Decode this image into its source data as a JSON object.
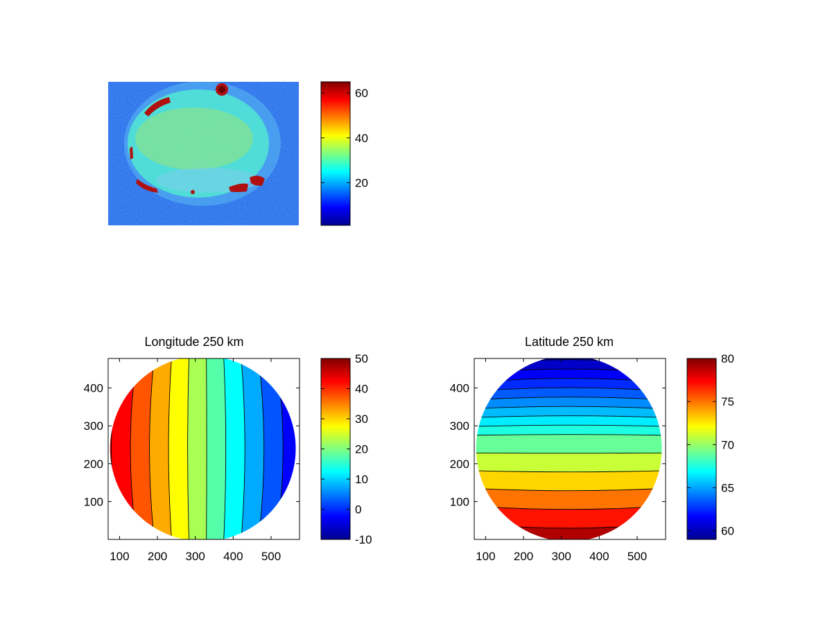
{
  "colormap": "jet",
  "colors": {
    "background": "#ffffff",
    "axis": "#000000",
    "contour_line": "#000000",
    "image_background": "#2a63e6",
    "image_disk": "#4fe0d4",
    "image_hotspot": "#b01010"
  },
  "chart_data": [
    {
      "type": "heatmap",
      "title": "",
      "xlabel": "",
      "ylabel": "",
      "axis_ticks_visible": false,
      "description_of_field": "noisy intensity image of a circular disk with bright arcs near the rim",
      "colorbar": {
        "clim": [
          1,
          65
        ],
        "ticks": [
          20,
          40,
          60
        ]
      }
    },
    {
      "type": "heatmap",
      "title": "Longitude 250 km",
      "xlabel": "",
      "ylabel": "",
      "xlim": [
        70,
        575
      ],
      "ylim": [
        0,
        478
      ],
      "xticks": [
        100,
        200,
        300,
        400,
        500
      ],
      "yticks": [
        100,
        200,
        300,
        400
      ],
      "disk": {
        "cx": 320,
        "cy": 240,
        "r": 245
      },
      "contour_levels": [
        -10,
        -5,
        0,
        5,
        10,
        15,
        20,
        25,
        30,
        35,
        40,
        45,
        50
      ],
      "field": {
        "orientation": "vertical",
        "value_left": 48,
        "value_right": -6
      },
      "colorbar": {
        "clim": [
          -10,
          50
        ],
        "ticks": [
          -10,
          0,
          10,
          20,
          30,
          40,
          50
        ]
      }
    },
    {
      "type": "heatmap",
      "title": "Latitude 250 km",
      "xlabel": "",
      "ylabel": "",
      "xlim": [
        70,
        575
      ],
      "ylim": [
        0,
        478
      ],
      "xticks": [
        100,
        200,
        300,
        400,
        500
      ],
      "yticks": [
        100,
        200,
        300,
        400
      ],
      "disk": {
        "cx": 320,
        "cy": 240,
        "r": 245
      },
      "contour_levels": [
        60,
        61,
        62,
        63,
        64,
        65,
        66,
        67,
        68,
        70,
        72,
        74,
        76,
        78,
        80
      ],
      "field": {
        "orientation": "horizontal",
        "value_top": 59,
        "value_bottom": 80
      },
      "colorbar": {
        "clim": [
          59,
          80
        ],
        "ticks": [
          60,
          65,
          70,
          75,
          80
        ]
      }
    }
  ]
}
